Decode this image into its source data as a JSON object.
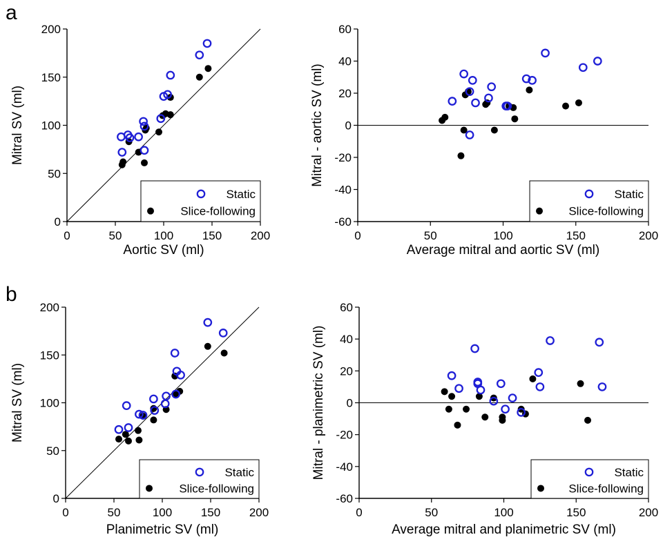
{
  "panel_labels": [
    "a",
    "b"
  ],
  "colors": {
    "static": "#1f1fd6",
    "slice_following": "#000000"
  },
  "legend": {
    "static_label": "Static",
    "slice_label": "Slice-following"
  },
  "chart_data": [
    {
      "id": "a-left",
      "type": "scatter",
      "xlabel": "Aortic SV (ml)",
      "ylabel": "Mitral SV (ml)",
      "xlim": [
        0,
        200
      ],
      "ylim": [
        0,
        200
      ],
      "xticks": [
        0,
        50,
        100,
        150,
        200
      ],
      "yticks": [
        0,
        50,
        100,
        150,
        200
      ],
      "identity_line": true,
      "legend_position": "bottom-right",
      "series": [
        {
          "name": "Static",
          "marker": "open-circle",
          "points": [
            [
              56,
              88
            ],
            [
              57,
              72
            ],
            [
              63,
              90
            ],
            [
              65,
              87
            ],
            [
              74,
              88
            ],
            [
              79,
              104
            ],
            [
              80,
              99
            ],
            [
              80,
              74
            ],
            [
              97,
              107
            ],
            [
              100,
              130
            ],
            [
              104,
              132
            ],
            [
              107,
              152
            ],
            [
              137,
              173
            ],
            [
              145,
              185
            ]
          ]
        },
        {
          "name": "Slice-following",
          "marker": "filled-circle",
          "points": [
            [
              57,
              59
            ],
            [
              58,
              62
            ],
            [
              64,
              83
            ],
            [
              74,
              72
            ],
            [
              80,
              61
            ],
            [
              81,
              95
            ],
            [
              82,
              97
            ],
            [
              95,
              93
            ],
            [
              99,
              110
            ],
            [
              102,
              112
            ],
            [
              107,
              111
            ],
            [
              107,
              129
            ],
            [
              137,
              150
            ],
            [
              146,
              159
            ]
          ]
        }
      ]
    },
    {
      "id": "a-right",
      "type": "scatter",
      "xlabel": "Average mitral and aortic SV (ml)",
      "ylabel": "Mitral - aortic SV (ml)",
      "xlim": [
        0,
        200
      ],
      "ylim": [
        -60,
        60
      ],
      "xticks": [
        0,
        50,
        100,
        150,
        200
      ],
      "yticks": [
        -60,
        -40,
        -20,
        0,
        20,
        40,
        60
      ],
      "zero_line": true,
      "legend_position": "bottom-right",
      "series": [
        {
          "name": "Static",
          "marker": "open-circle",
          "points": [
            [
              65,
              15
            ],
            [
              73,
              32
            ],
            [
              77,
              21
            ],
            [
              77,
              -6
            ],
            [
              79,
              28
            ],
            [
              81,
              14
            ],
            [
              90,
              17
            ],
            [
              92,
              24
            ],
            [
              102,
              12
            ],
            [
              103,
              12
            ],
            [
              116,
              29
            ],
            [
              120,
              28
            ],
            [
              129,
              45
            ],
            [
              155,
              36
            ],
            [
              165,
              40
            ]
          ]
        },
        {
          "name": "Slice-following",
          "marker": "filled-circle",
          "points": [
            [
              58,
              3
            ],
            [
              60,
              5
            ],
            [
              71,
              -19
            ],
            [
              73,
              -3
            ],
            [
              74,
              19
            ],
            [
              76,
              21
            ],
            [
              88,
              13
            ],
            [
              89,
              14
            ],
            [
              94,
              -3
            ],
            [
              104,
              12
            ],
            [
              107,
              11
            ],
            [
              108,
              4
            ],
            [
              118,
              22
            ],
            [
              143,
              12
            ],
            [
              152,
              14
            ]
          ]
        }
      ]
    },
    {
      "id": "b-left",
      "type": "scatter",
      "xlabel": "Planimetric SV (ml)",
      "ylabel": "Mitral SV (ml)",
      "xlim": [
        0,
        200
      ],
      "ylim": [
        0,
        200
      ],
      "xticks": [
        0,
        50,
        100,
        150,
        200
      ],
      "yticks": [
        0,
        50,
        100,
        150,
        200
      ],
      "identity_line": true,
      "legend_position": "bottom-right",
      "series": [
        {
          "name": "Static",
          "marker": "open-circle",
          "points": [
            [
              55,
              72
            ],
            [
              63,
              97
            ],
            [
              65,
              74
            ],
            [
              76,
              88
            ],
            [
              80,
              87
            ],
            [
              91,
              104
            ],
            [
              92,
              92
            ],
            [
              103,
              99
            ],
            [
              104,
              107
            ],
            [
              113,
              152
            ],
            [
              114,
              109
            ],
            [
              115,
              133
            ],
            [
              119,
              129
            ],
            [
              147,
              184
            ],
            [
              163,
              173
            ]
          ]
        },
        {
          "name": "Slice-following",
          "marker": "filled-circle",
          "points": [
            [
              55,
              62
            ],
            [
              62,
              67
            ],
            [
              65,
              60
            ],
            [
              75,
              71
            ],
            [
              76,
              61
            ],
            [
              80,
              86
            ],
            [
              91,
              82
            ],
            [
              91,
              94
            ],
            [
              104,
              93
            ],
            [
              113,
              128
            ],
            [
              114,
              109
            ],
            [
              118,
              112
            ],
            [
              147,
              159
            ],
            [
              164,
              152
            ]
          ]
        }
      ]
    },
    {
      "id": "b-right",
      "type": "scatter",
      "xlabel": "Average mitral and planimetric SV (ml)",
      "ylabel": "Mitral - planimetric SV (ml)",
      "xlim": [
        0,
        200
      ],
      "ylim": [
        -60,
        60
      ],
      "xticks": [
        0,
        50,
        100,
        150,
        200
      ],
      "yticks": [
        -60,
        -40,
        -20,
        0,
        20,
        40,
        60
      ],
      "zero_line": true,
      "legend_position": "bottom-right",
      "series": [
        {
          "name": "Static",
          "marker": "open-circle",
          "points": [
            [
              64,
              17
            ],
            [
              69,
              9
            ],
            [
              80,
              34
            ],
            [
              82,
              13
            ],
            [
              82,
              12
            ],
            [
              84,
              8
            ],
            [
              93,
              1
            ],
            [
              98,
              12
            ],
            [
              101,
              -4
            ],
            [
              106,
              3
            ],
            [
              112,
              -6
            ],
            [
              124,
              19
            ],
            [
              125,
              10
            ],
            [
              132,
              39
            ],
            [
              166,
              38
            ],
            [
              168,
              10
            ]
          ]
        },
        {
          "name": "Slice-following",
          "marker": "filled-circle",
          "points": [
            [
              59,
              7
            ],
            [
              62,
              -4
            ],
            [
              64,
              4
            ],
            [
              68,
              -14
            ],
            [
              74,
              -4
            ],
            [
              83,
              4
            ],
            [
              87,
              -9
            ],
            [
              93,
              3
            ],
            [
              99,
              -11
            ],
            [
              99,
              -9
            ],
            [
              112,
              -4
            ],
            [
              115,
              -7
            ],
            [
              120,
              15
            ],
            [
              153,
              12
            ],
            [
              158,
              -11
            ]
          ]
        }
      ]
    }
  ]
}
